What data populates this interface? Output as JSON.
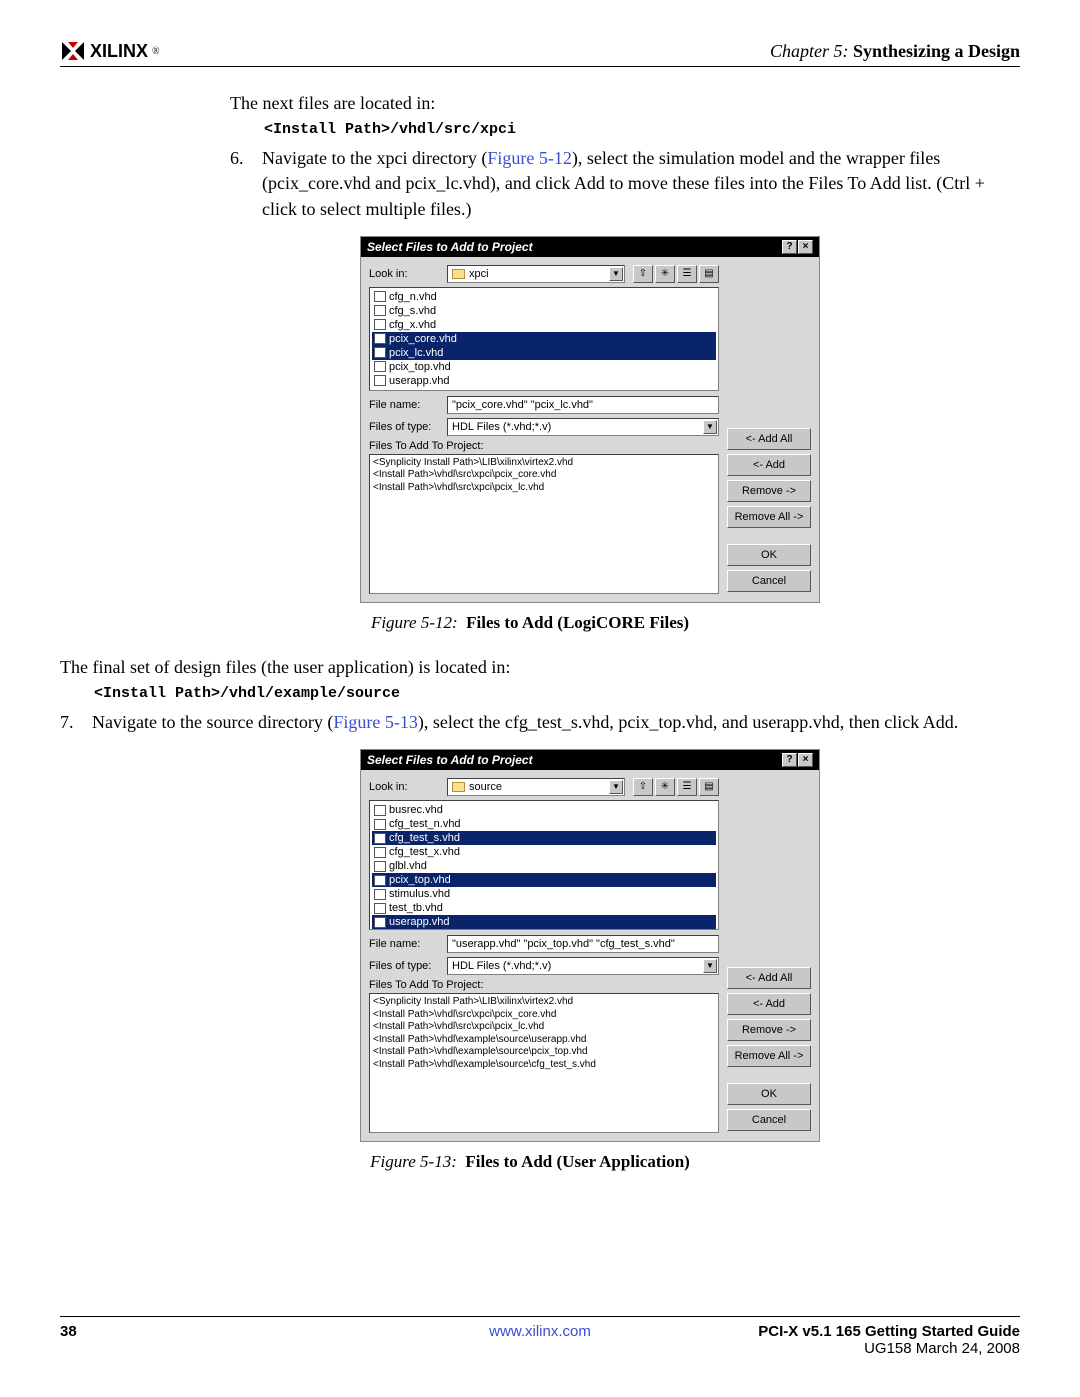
{
  "header": {
    "logo_text": "XILINX",
    "chapter_prefix": "Chapter 5:",
    "chapter_title": "Synthesizing a Design"
  },
  "body": {
    "intro1": "The next files are located in:",
    "code1": "<Install Path>/vhdl/src/xpci",
    "step6_num": "6.",
    "step6_text": "Navigate to the xpci directory (",
    "step6_figref": "Figure 5-12",
    "step6_text2": "), select the simulation model and the wrapper files (pcix_core.vhd and pcix_lc.vhd), and click Add to move these files into the Files To Add list. (Ctrl + click to select multiple files.)",
    "fig12_caption_prefix": "Figure 5-12:",
    "fig12_caption": "Files to Add (LogiCORE Files)",
    "intro2": "The final set of design files (the user application) is located in:",
    "code2": "<Install Path>/vhdl/example/source",
    "step7_num": "7.",
    "step7_text": "Navigate to the source directory (",
    "step7_figref": "Figure 5-13",
    "step7_text2": "), select the cfg_test_s.vhd, pcix_top.vhd, and userapp.vhd, then click Add.",
    "fig13_caption_prefix": "Figure 5-13:",
    "fig13_caption": "Files to Add (User Application)"
  },
  "dialog1": {
    "title": "Select Files to Add to Project",
    "lookin_lbl": "Look in:",
    "lookin_val": "xpci",
    "files": [
      {
        "name": "cfg_n.vhd",
        "sel": false
      },
      {
        "name": "cfg_s.vhd",
        "sel": false
      },
      {
        "name": "cfg_x.vhd",
        "sel": false
      },
      {
        "name": "pcix_core.vhd",
        "sel": true
      },
      {
        "name": "pcix_lc.vhd",
        "sel": true
      },
      {
        "name": "pcix_top.vhd",
        "sel": false
      },
      {
        "name": "userapp.vhd",
        "sel": false
      }
    ],
    "filename_lbl": "File name:",
    "filename_val": "\"pcix_core.vhd\" \"pcix_lc.vhd\"",
    "filetype_lbl": "Files of type:",
    "filetype_val": "HDL Files (*.vhd;*.v)",
    "addlist_lbl": "Files To Add To Project:",
    "addlist": [
      "<Synplicity Install Path>\\LIB\\xilinx\\virtex2.vhd",
      "<Install Path>\\vhdl\\src\\xpci\\pcix_core.vhd",
      "<Install Path>\\vhdl\\src\\xpci\\pcix_lc.vhd"
    ],
    "buttons": {
      "addall": "<- Add All",
      "add": "<- Add",
      "remove": "Remove ->",
      "removeall": "Remove All ->",
      "ok": "OK",
      "cancel": "Cancel"
    }
  },
  "dialog2": {
    "title": "Select Files to Add to Project",
    "lookin_lbl": "Look in:",
    "lookin_val": "source",
    "files": [
      {
        "name": "busrec.vhd",
        "sel": false
      },
      {
        "name": "cfg_test_n.vhd",
        "sel": false
      },
      {
        "name": "cfg_test_s.vhd",
        "sel": true
      },
      {
        "name": "cfg_test_x.vhd",
        "sel": false
      },
      {
        "name": "glbl.vhd",
        "sel": false
      },
      {
        "name": "pcix_top.vhd",
        "sel": true
      },
      {
        "name": "stimulus.vhd",
        "sel": false
      },
      {
        "name": "test_tb.vhd",
        "sel": false
      },
      {
        "name": "userapp.vhd",
        "sel": true
      }
    ],
    "filename_lbl": "File name:",
    "filename_val": "\"userapp.vhd\" \"pcix_top.vhd\" \"cfg_test_s.vhd\"",
    "filetype_lbl": "Files of type:",
    "filetype_val": "HDL Files (*.vhd;*.v)",
    "addlist_lbl": "Files To Add To Project:",
    "addlist": [
      "<Synplicity Install Path>\\LIB\\xilinx\\virtex2.vhd",
      "<Install Path>\\vhdl\\src\\xpci\\pcix_core.vhd",
      "<Install Path>\\vhdl\\src\\xpci\\pcix_lc.vhd",
      "<Install Path>\\vhdl\\example\\source\\userapp.vhd",
      "<Install Path>\\vhdl\\example\\source\\pcix_top.vhd",
      "<Install Path>\\vhdl\\example\\source\\cfg_test_s.vhd"
    ],
    "buttons": {
      "addall": "<- Add All",
      "add": "<- Add",
      "remove": "Remove ->",
      "removeall": "Remove All ->",
      "ok": "OK",
      "cancel": "Cancel"
    }
  },
  "footer": {
    "page": "38",
    "link": "www.xilinx.com",
    "title": "PCI-X v5.1 165 Getting Started Guide",
    "sub": "UG158 March 24, 2008"
  }
}
